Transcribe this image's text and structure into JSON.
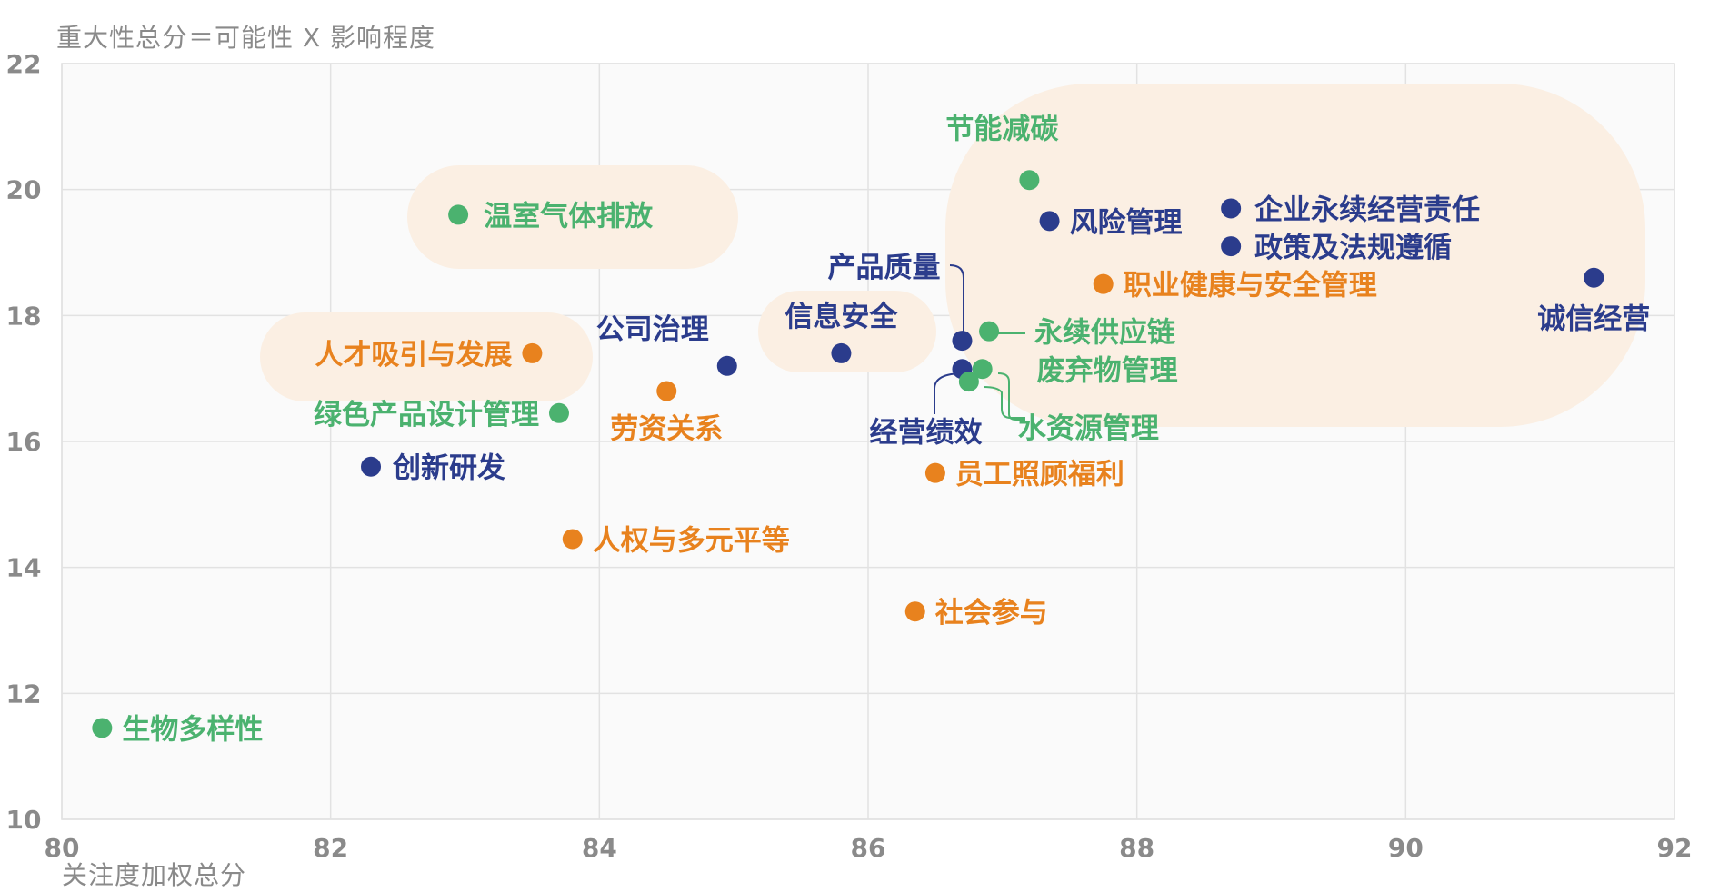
{
  "chart_data": {
    "type": "scatter",
    "ylabel": "重大性总分＝可能性 X 影响程度",
    "xlabel": "关注度加权总分",
    "xlim": [
      80,
      92
    ],
    "ylim": [
      10,
      22
    ],
    "xticks": [
      80,
      82,
      84,
      86,
      88,
      90,
      92
    ],
    "yticks": [
      10,
      12,
      14,
      16,
      18,
      20,
      22
    ],
    "grid": true,
    "colors": {
      "governance": "#2b3c8c",
      "social": "#e8821e",
      "environment": "#4bb26f",
      "highlight": "#fbefe3"
    },
    "points": [
      {
        "label": "诚信经营",
        "x": 91.4,
        "y": 18.6,
        "group": "governance"
      },
      {
        "label": "企业永续经营责任",
        "x": 88.7,
        "y": 19.7,
        "group": "governance"
      },
      {
        "label": "政策及法规遵循",
        "x": 88.7,
        "y": 19.1,
        "group": "governance"
      },
      {
        "label": "风险管理",
        "x": 87.35,
        "y": 19.5,
        "group": "governance"
      },
      {
        "label": "节能减碳",
        "x": 87.2,
        "y": 20.15,
        "group": "environment"
      },
      {
        "label": "职业健康与安全管理",
        "x": 87.75,
        "y": 18.5,
        "group": "social"
      },
      {
        "label": "产品质量",
        "x": 86.7,
        "y": 17.6,
        "group": "governance"
      },
      {
        "label": "永续供应链",
        "x": 86.9,
        "y": 17.75,
        "group": "environment"
      },
      {
        "label": "经营绩效",
        "x": 86.7,
        "y": 17.15,
        "group": "governance"
      },
      {
        "label": "废弃物管理",
        "x": 86.85,
        "y": 17.15,
        "group": "environment"
      },
      {
        "label": "水资源管理",
        "x": 86.75,
        "y": 16.95,
        "group": "environment"
      },
      {
        "label": "员工照顾福利",
        "x": 86.5,
        "y": 15.5,
        "group": "social"
      },
      {
        "label": "社会参与",
        "x": 86.35,
        "y": 13.3,
        "group": "social"
      },
      {
        "label": "信息安全",
        "x": 85.8,
        "y": 17.4,
        "group": "governance"
      },
      {
        "label": "公司治理",
        "x": 84.95,
        "y": 17.2,
        "group": "governance"
      },
      {
        "label": "劳资关系",
        "x": 84.5,
        "y": 16.8,
        "group": "social"
      },
      {
        "label": "人权与多元平等",
        "x": 83.8,
        "y": 14.45,
        "group": "social"
      },
      {
        "label": "温室气体排放",
        "x": 82.95,
        "y": 19.6,
        "group": "environment"
      },
      {
        "label": "人才吸引与发展",
        "x": 83.5,
        "y": 17.4,
        "group": "social"
      },
      {
        "label": "绿色产品设计管理",
        "x": 83.7,
        "y": 16.45,
        "group": "environment"
      },
      {
        "label": "创新研发",
        "x": 82.3,
        "y": 15.6,
        "group": "governance"
      },
      {
        "label": "生物多样性",
        "x": 80.3,
        "y": 11.45,
        "group": "environment"
      }
    ]
  }
}
